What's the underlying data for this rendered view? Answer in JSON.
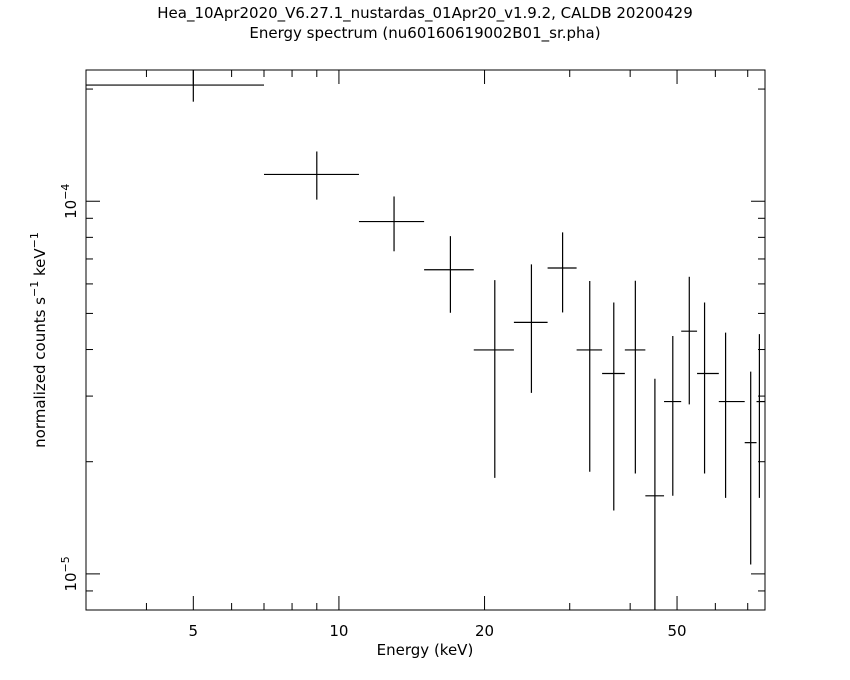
{
  "title": "Hea_10Apr2020_V6.27.1_nustardas_01Apr20_v1.9.2, CALDB 20200429",
  "subtitle": "Energy spectrum (nu60160619002B01_sr.pha)",
  "chart_data": {
    "type": "scatter",
    "xlabel": "Energy (keV)",
    "ylabel_base": "normalized counts s",
    "ylabel_exp1": "−1",
    "ylabel_mid": " keV",
    "ylabel_exp2": "−1",
    "xscale": "log",
    "yscale": "log",
    "xlim": [
      3,
      76
    ],
    "ylim": [
      8e-06,
      0.000225
    ],
    "xticks": [
      {
        "value": 5,
        "label": "5"
      },
      {
        "value": 10,
        "label": "10"
      },
      {
        "value": 20,
        "label": "20"
      },
      {
        "value": 50,
        "label": "50"
      }
    ],
    "yticks": [
      {
        "value": 0.0001,
        "base": "10",
        "exp": "−4"
      },
      {
        "value": 1e-05,
        "base": "10",
        "exp": "−5"
      }
    ],
    "grid": false,
    "legend": "none",
    "points": [
      {
        "x": 5.0,
        "xlo": 3.0,
        "xhi": 7.0,
        "y": 0.000205,
        "ylo": 0.000185,
        "yhi": 0.000225
      },
      {
        "x": 9.0,
        "xlo": 7.0,
        "xhi": 11.0,
        "y": 0.000118,
        "ylo": 0.000101,
        "yhi": 0.000136
      },
      {
        "x": 13.0,
        "xlo": 11.0,
        "xhi": 15.0,
        "y": 8.82e-05,
        "ylo": 7.34e-05,
        "yhi": 0.000103
      },
      {
        "x": 17.0,
        "xlo": 15.0,
        "xhi": 19.0,
        "y": 6.55e-05,
        "ylo": 5.02e-05,
        "yhi": 8.06e-05
      },
      {
        "x": 21.0,
        "xlo": 19.0,
        "xhi": 23.0,
        "y": 3.99e-05,
        "ylo": 1.81e-05,
        "yhi": 6.14e-05
      },
      {
        "x": 25.0,
        "xlo": 23.0,
        "xhi": 27.0,
        "y": 4.73e-05,
        "ylo": 3.06e-05,
        "yhi": 6.77e-05
      },
      {
        "x": 29.0,
        "xlo": 27.0,
        "xhi": 31.0,
        "y": 6.62e-05,
        "ylo": 5.03e-05,
        "yhi": 8.25e-05
      },
      {
        "x": 33.0,
        "xlo": 31.0,
        "xhi": 35.0,
        "y": 3.99e-05,
        "ylo": 1.88e-05,
        "yhi": 6.11e-05
      },
      {
        "x": 37.0,
        "xlo": 35.0,
        "xhi": 39.0,
        "y": 3.45e-05,
        "ylo": 1.48e-05,
        "yhi": 5.35e-05
      },
      {
        "x": 41.0,
        "xlo": 39.0,
        "xhi": 43.0,
        "y": 3.99e-05,
        "ylo": 1.86e-05,
        "yhi": 6.12e-05
      },
      {
        "x": 45.0,
        "xlo": 43.0,
        "xhi": 47.0,
        "y": 1.62e-05,
        "ylo": 0.0,
        "yhi": 3.34e-05
      },
      {
        "x": 49.0,
        "xlo": 47.0,
        "xhi": 51.0,
        "y": 2.9e-05,
        "ylo": 1.62e-05,
        "yhi": 4.35e-05
      },
      {
        "x": 53.0,
        "xlo": 51.0,
        "xhi": 55.0,
        "y": 4.48e-05,
        "ylo": 2.85e-05,
        "yhi": 6.27e-05
      },
      {
        "x": 57.0,
        "xlo": 55.0,
        "xhi": 61.0,
        "y": 3.45e-05,
        "ylo": 1.86e-05,
        "yhi": 5.35e-05
      },
      {
        "x": 63.0,
        "xlo": 61.0,
        "xhi": 69.0,
        "y": 2.9e-05,
        "ylo": 1.6e-05,
        "yhi": 4.44e-05
      },
      {
        "x": 71.0,
        "xlo": 69.0,
        "xhi": 73.0,
        "y": 2.25e-05,
        "ylo": 1.06e-05,
        "yhi": 3.49e-05
      },
      {
        "x": 74.0,
        "xlo": 73.0,
        "xhi": 76.0,
        "y": 2.9e-05,
        "ylo": 1.6e-05,
        "yhi": 4.4e-05
      }
    ]
  }
}
